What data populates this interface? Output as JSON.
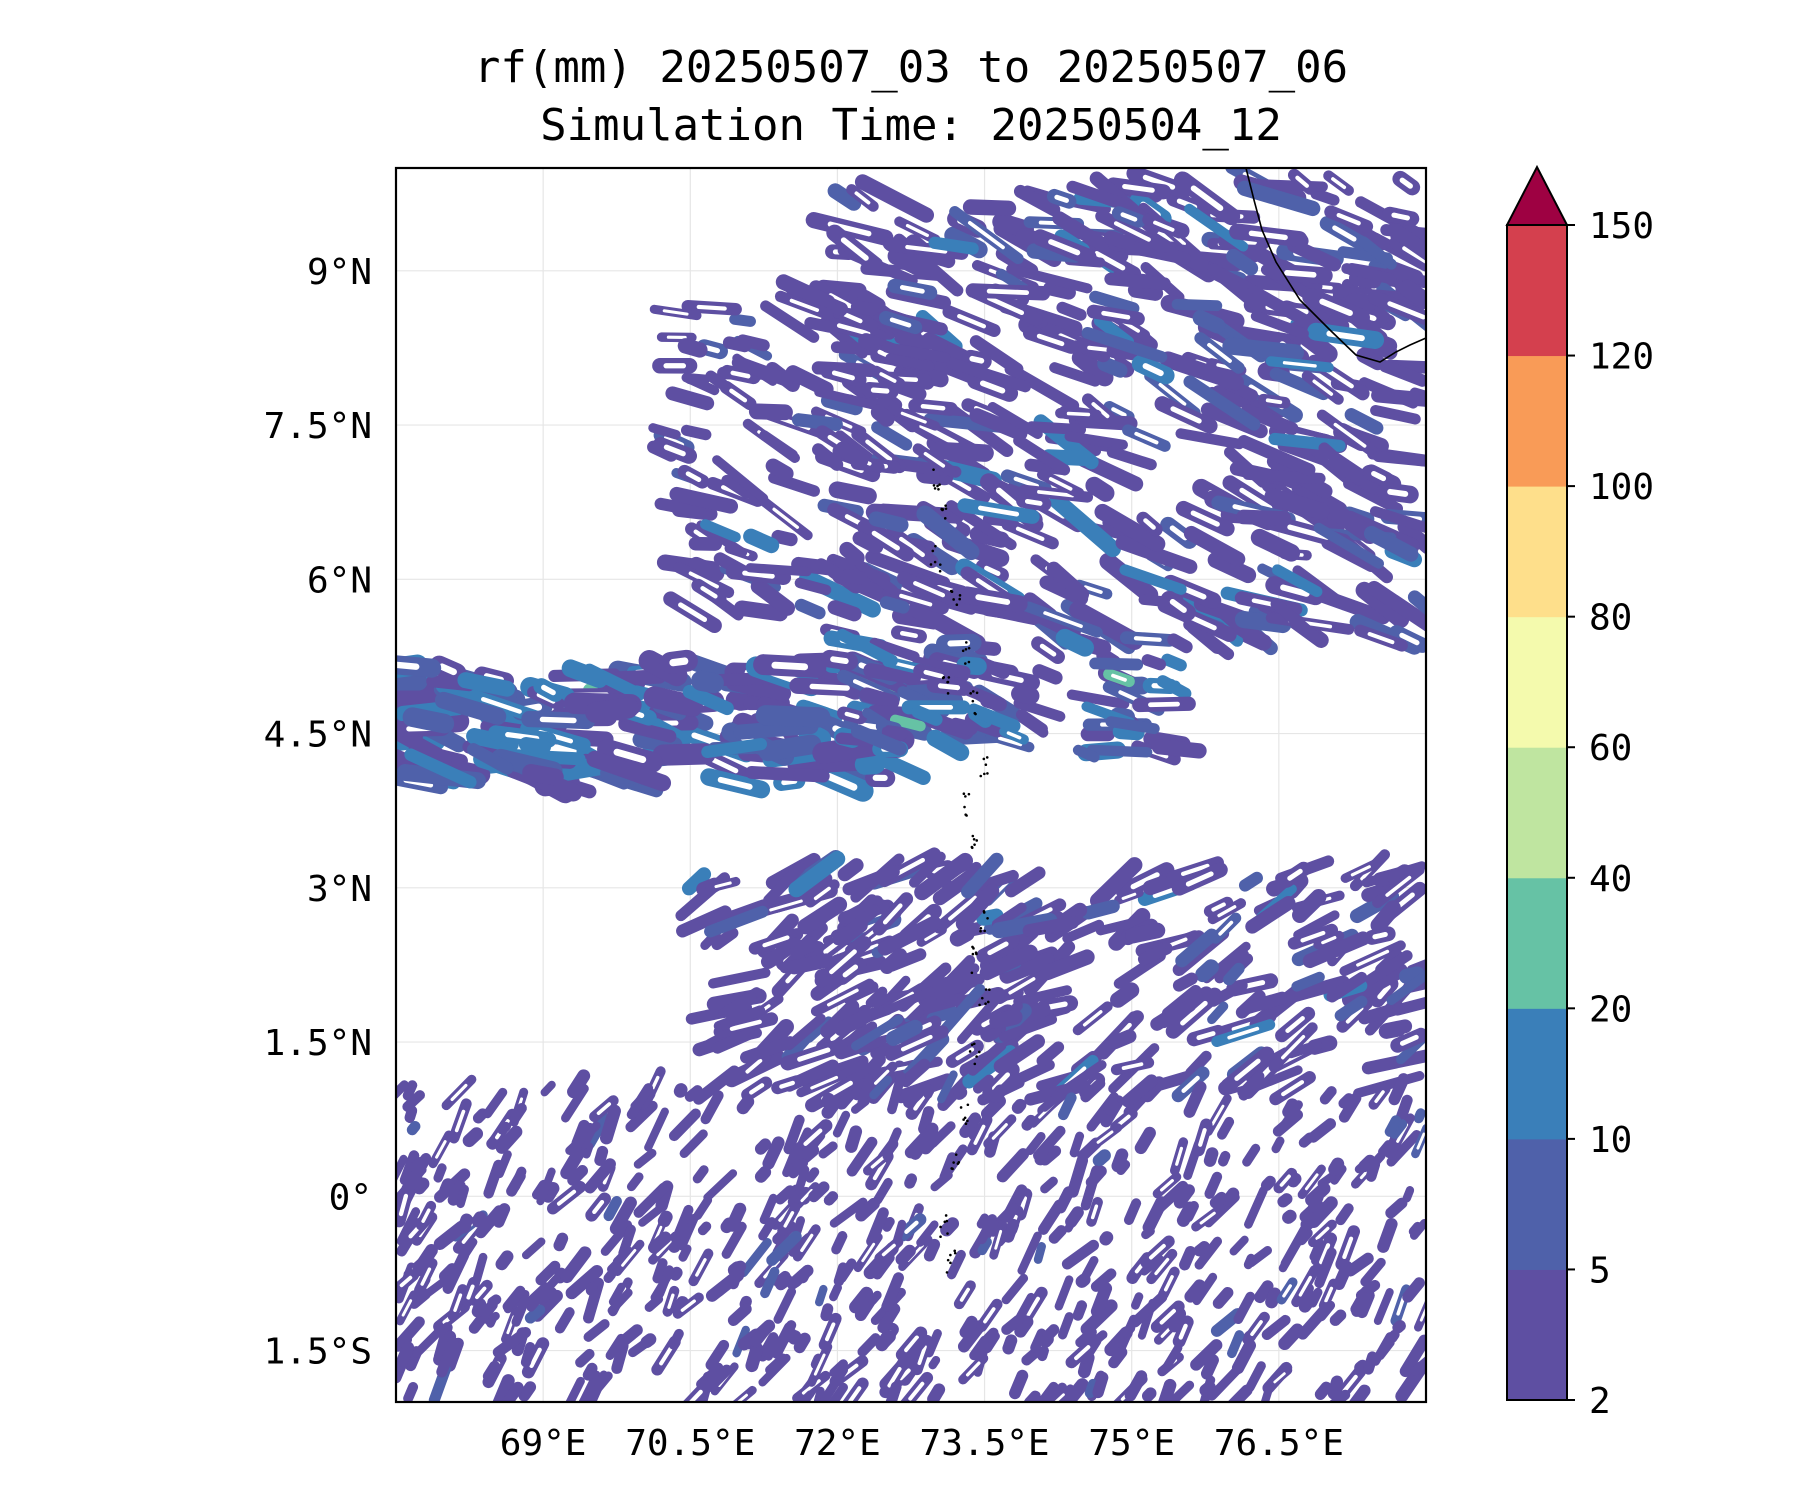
{
  "title": "rf(mm) 20250507_03 to 20250507_06",
  "subtitle": "Simulation Time: 20250504_12",
  "map": {
    "extent_lon": [
      67.5,
      78.0
    ],
    "extent_lat": [
      -2.0,
      10.0
    ],
    "gridlines": true,
    "lon_ticks": [
      {
        "value": 69.0,
        "label": "69°E"
      },
      {
        "value": 70.5,
        "label": "70.5°E"
      },
      {
        "value": 72.0,
        "label": "72°E"
      },
      {
        "value": 73.5,
        "label": "73.5°E"
      },
      {
        "value": 75.0,
        "label": "75°E"
      },
      {
        "value": 76.5,
        "label": "76.5°E"
      }
    ],
    "lat_ticks": [
      {
        "value": 9.0,
        "label": "9°N"
      },
      {
        "value": 7.5,
        "label": "7.5°N"
      },
      {
        "value": 6.0,
        "label": "6°N"
      },
      {
        "value": 4.5,
        "label": "4.5°N"
      },
      {
        "value": 3.0,
        "label": "3°N"
      },
      {
        "value": 1.5,
        "label": "1.5°N"
      },
      {
        "value": 0.0,
        "label": "0°"
      },
      {
        "value": -1.5,
        "label": "1.5°S"
      }
    ],
    "features": [
      "coastline-southern-india",
      "maldives-atolls"
    ]
  },
  "colorbar": {
    "levels": [
      2,
      5,
      10,
      20,
      40,
      60,
      80,
      100,
      120,
      150
    ],
    "colors": [
      "#5e4fa2",
      "#4f61aa",
      "#3a7fb9",
      "#66c2a5",
      "#bfe5a0",
      "#f4faad",
      "#fedf8b",
      "#f99b57",
      "#d4404e"
    ],
    "extend_color": "#9e0142",
    "extend": "max"
  },
  "chart_data": {
    "type": "heatmap",
    "title": "rf(mm) 20250507_03 to 20250507_06",
    "subtitle": "Simulation Time: 20250504_12",
    "xlim": [
      67.5,
      78.0
    ],
    "ylim": [
      -2.0,
      10.0
    ],
    "colorbar_levels": [
      2,
      5,
      10,
      20,
      40,
      60,
      80,
      100,
      120,
      150
    ],
    "regions": [
      {
        "lon": [
          67.5,
          78.0
        ],
        "lat": [
          5.5,
          9.9
        ],
        "value_range": [
          2,
          20
        ],
        "pattern": "streaky bands oriented WNW-ESE"
      },
      {
        "lon": [
          67.5,
          72.5
        ],
        "lat": [
          4.0,
          5.2
        ],
        "value_range": [
          2,
          40
        ],
        "pattern": "zonal band near 4.5°N"
      },
      {
        "lon": [
          72.5,
          75.5
        ],
        "lat": [
          4.5,
          6.5
        ],
        "value_range": [
          2,
          40
        ],
        "pattern": "scattered cells"
      },
      {
        "lon": [
          70.5,
          78.0
        ],
        "lat": [
          1.0,
          3.2
        ],
        "value_range": [
          2,
          20
        ],
        "pattern": "diagonal streaks SW-NE"
      },
      {
        "lon": [
          67.5,
          78.0
        ],
        "lat": [
          -2.0,
          1.0
        ],
        "value_range": [
          2,
          10
        ],
        "pattern": "dense small cells"
      }
    ],
    "dry_region": {
      "lon": [
        67.5,
        75.5
      ],
      "lat": [
        3.2,
        4.0
      ]
    }
  }
}
